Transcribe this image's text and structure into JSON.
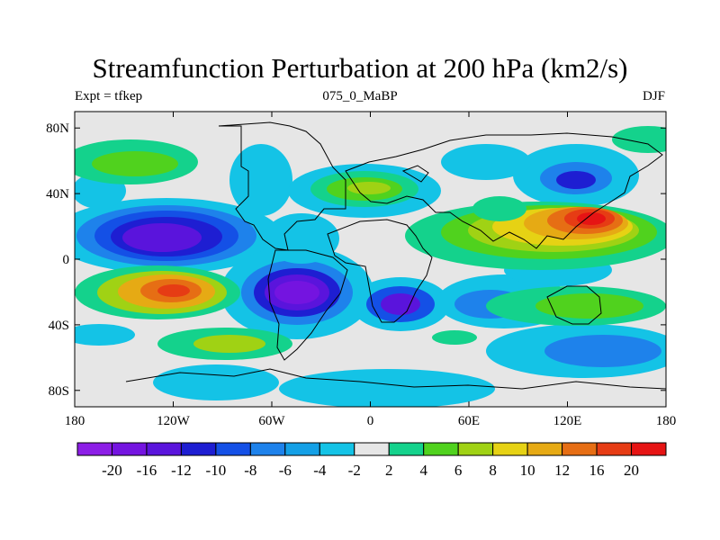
{
  "title": "Streamfunction Perturbation at 200 hPa (km2/s)",
  "subtitle_left": "Expt = tfkep",
  "subtitle_center": "075_0_MaBP",
  "subtitle_right": "DJF",
  "map": {
    "projection": "cylindrical equidistant",
    "lon_range": [
      -180,
      180
    ],
    "lat_range": [
      -90,
      90
    ],
    "x_ticks": [
      {
        "value": -180,
        "label": "180"
      },
      {
        "value": -120,
        "label": "120W"
      },
      {
        "value": -60,
        "label": "60W"
      },
      {
        "value": 0,
        "label": "0"
      },
      {
        "value": 60,
        "label": "60E"
      },
      {
        "value": 120,
        "label": "120E"
      },
      {
        "value": 180,
        "label": "180"
      }
    ],
    "y_ticks": [
      {
        "value": 80,
        "label": "80N"
      },
      {
        "value": 40,
        "label": "40N"
      },
      {
        "value": 0,
        "label": "0"
      },
      {
        "value": -40,
        "label": "40S"
      },
      {
        "value": -80,
        "label": "80S"
      }
    ],
    "features": [
      {
        "name": "low-north-pacific",
        "lon": -128,
        "lat": 12,
        "value": -22
      },
      {
        "name": "low-south-america",
        "lon": -45,
        "lat": -22,
        "value": -21
      },
      {
        "name": "low-south-africa",
        "lon": 20,
        "lat": -28,
        "value": -16
      },
      {
        "name": "low-east-asia",
        "lon": 118,
        "lat": 46,
        "value": -12
      },
      {
        "name": "high-asia",
        "lon": 135,
        "lat": 23,
        "value": 21
      },
      {
        "name": "high-south-pacific",
        "lon": -150,
        "lat": -20,
        "value": 17
      },
      {
        "name": "high-north-atlantic",
        "lon": 5,
        "lat": 40,
        "value": 8
      },
      {
        "name": "high-arabia",
        "lon": 65,
        "lat": 12,
        "value": 9
      }
    ]
  },
  "colorbar": {
    "labels": [
      "-20",
      "-16",
      "-12",
      "-10",
      "-8",
      "-6",
      "-4",
      "-2",
      "2",
      "4",
      "6",
      "8",
      "10",
      "12",
      "16",
      "20"
    ],
    "colors": [
      "#8c1ee6",
      "#7414e0",
      "#5a14dc",
      "#1e1ed2",
      "#1450e6",
      "#1e82eb",
      "#14a0e6",
      "#14c3e6",
      "#e6e6e6",
      "#14d28c",
      "#50d21e",
      "#a0d214",
      "#e6d214",
      "#e6aa14",
      "#e66e14",
      "#e63c14",
      "#e61414"
    ]
  }
}
